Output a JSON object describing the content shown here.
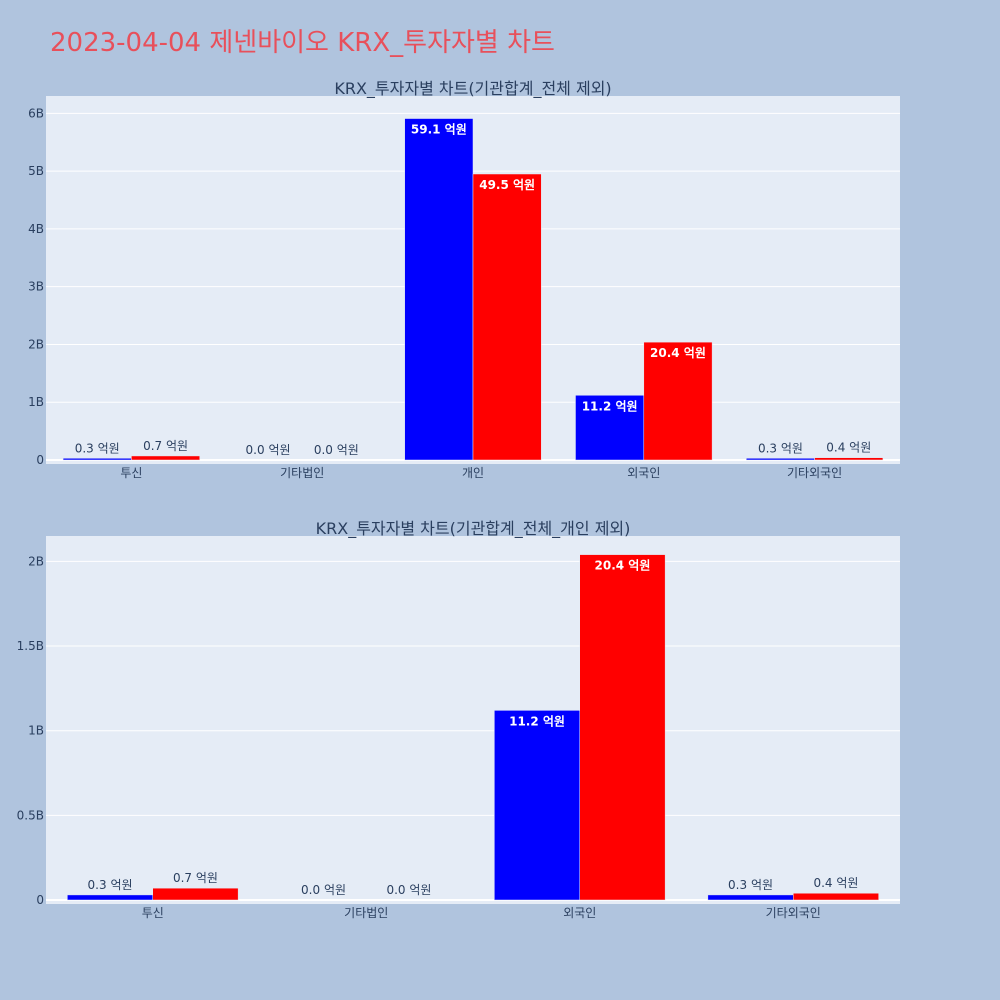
{
  "page": {
    "title": "2023-04-04 제넨바이오 KRX_투자자별 차트"
  },
  "chart_data": [
    {
      "type": "bar",
      "title": "KRX_투자자별 차트(기관합계_전체 제외)",
      "categories": [
        "투신",
        "기타법인",
        "개인",
        "외국인",
        "기타외국인"
      ],
      "series": [
        {
          "color": "#0000ff",
          "values": [
            30000000,
            0,
            5910000000,
            1120000000,
            30000000
          ],
          "labels": [
            "0.3 억원",
            "0.0 억원",
            "59.1 억원",
            "11.2 억원",
            "0.3 억원"
          ]
        },
        {
          "color": "#ff0000",
          "values": [
            70000000,
            0,
            4950000000,
            2040000000,
            40000000
          ],
          "labels": [
            "0.7 억원",
            "0.0 억원",
            "49.5 억원",
            "20.4 억원",
            "0.4 억원"
          ]
        }
      ],
      "ylim": [
        0,
        6300000000
      ],
      "yticks": [
        0,
        1000000000,
        2000000000,
        3000000000,
        4000000000,
        5000000000,
        6000000000
      ],
      "ytick_labels": [
        "0",
        "1B",
        "2B",
        "3B",
        "4B",
        "5B",
        "6B"
      ],
      "grid": true
    },
    {
      "type": "bar",
      "title": "KRX_투자자별 차트(기관합계_전체_개인 제외)",
      "categories": [
        "투신",
        "기타법인",
        "외국인",
        "기타외국인"
      ],
      "series": [
        {
          "color": "#0000ff",
          "values": [
            30000000,
            0,
            1120000000,
            30000000
          ],
          "labels": [
            "0.3 억원",
            "0.0 억원",
            "11.2 억원",
            "0.3 억원"
          ]
        },
        {
          "color": "#ff0000",
          "values": [
            70000000,
            0,
            2040000000,
            40000000
          ],
          "labels": [
            "0.7 억원",
            "0.0 억원",
            "20.4 억원",
            "0.4 억원"
          ]
        }
      ],
      "ylim": [
        0,
        2150000000
      ],
      "yticks": [
        0,
        500000000,
        1000000000,
        1500000000,
        2000000000
      ],
      "ytick_labels": [
        "0",
        "0.5B",
        "1B",
        "1.5B",
        "2B"
      ],
      "grid": true
    }
  ]
}
